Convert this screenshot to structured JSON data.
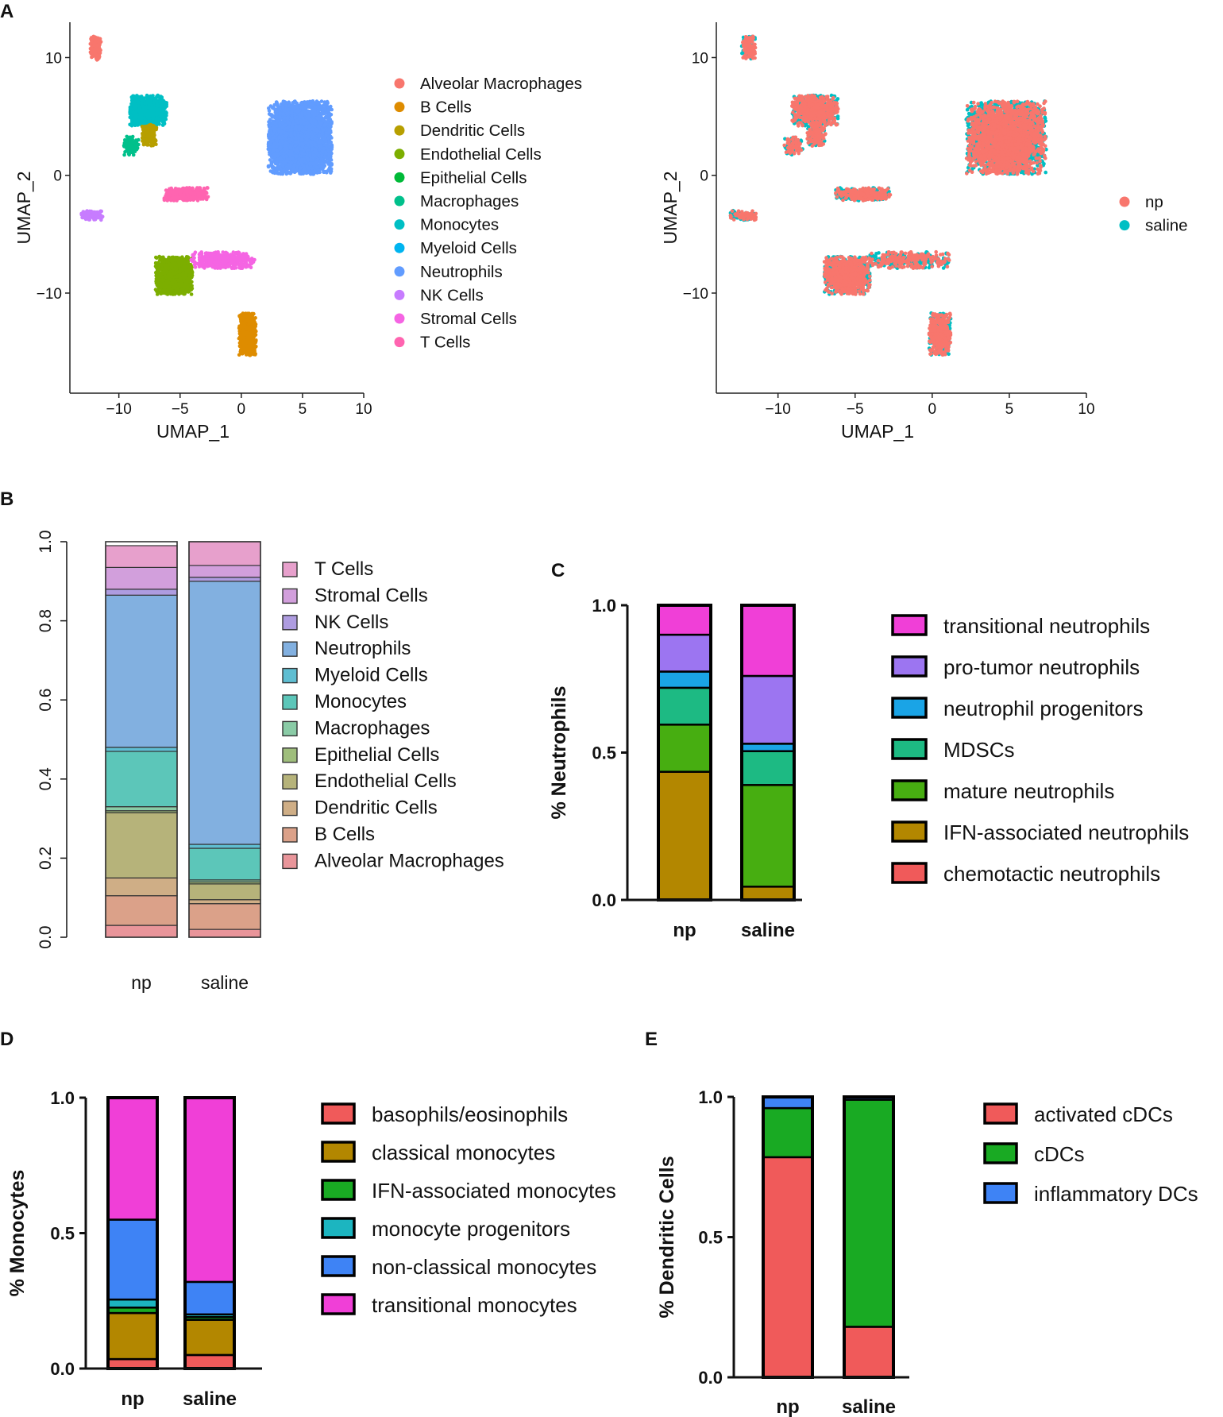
{
  "panel_labels": [
    "A",
    "B",
    "C",
    "D",
    "E"
  ],
  "chart_data": [
    {
      "id": "umap_celltype",
      "type": "scatter",
      "xlabel": "UMAP_1",
      "ylabel": "UMAP_2",
      "xlim": [
        -14,
        10
      ],
      "ylim": [
        -18.5,
        13
      ],
      "xticks": [
        -10,
        -5,
        0,
        5,
        10
      ],
      "yticks": [
        10,
        0,
        -10
      ],
      "legend": [
        {
          "name": "Alveolar Macrophages",
          "color": "#F8766D"
        },
        {
          "name": "B Cells",
          "color": "#DE8C00"
        },
        {
          "name": "Dendritic Cells",
          "color": "#B79F00"
        },
        {
          "name": "Endothelial Cells",
          "color": "#7CAE00"
        },
        {
          "name": "Epithelial Cells",
          "color": "#00BA38"
        },
        {
          "name": "Macrophages",
          "color": "#00C08B"
        },
        {
          "name": "Monocytes",
          "color": "#00BFC4"
        },
        {
          "name": "Myeloid Cells",
          "color": "#00B4F0"
        },
        {
          "name": "Neutrophils",
          "color": "#619CFF"
        },
        {
          "name": "NK Cells",
          "color": "#C77CFF"
        },
        {
          "name": "Stromal Cells",
          "color": "#F564E3"
        },
        {
          "name": "T Cells",
          "color": "#FF64B0"
        }
      ],
      "clusters": [
        {
          "label": "Alveolar Macrophages",
          "center": [
            -11.9,
            10.8
          ],
          "spread": [
            0.45,
            1.0
          ],
          "n": 160
        },
        {
          "label": "Monocytes",
          "center": [
            -7.6,
            5.5
          ],
          "spread": [
            1.5,
            1.3
          ],
          "n": 900
        },
        {
          "label": "Dendritic Cells",
          "center": [
            -7.5,
            3.4
          ],
          "spread": [
            0.6,
            0.9
          ],
          "n": 200
        },
        {
          "label": "Macrophages",
          "center": [
            -9.0,
            2.5
          ],
          "spread": [
            0.6,
            0.8
          ],
          "n": 120
        },
        {
          "label": "Neutrophils",
          "center": [
            4.8,
            3.2
          ],
          "spread": [
            2.6,
            3.1
          ],
          "n": 3500
        },
        {
          "label": "T Cells",
          "center": [
            -4.5,
            -1.6
          ],
          "spread": [
            1.8,
            0.55
          ],
          "n": 420
        },
        {
          "label": "NK Cells",
          "center": [
            -12.2,
            -3.4
          ],
          "spread": [
            0.9,
            0.4
          ],
          "n": 120
        },
        {
          "label": "Endothelial Cells",
          "center": [
            -5.5,
            -8.5
          ],
          "spread": [
            1.5,
            1.6
          ],
          "n": 1300
        },
        {
          "label": "Stromal Cells",
          "center": [
            -1.5,
            -7.2
          ],
          "spread": [
            2.6,
            0.7
          ],
          "n": 420
        },
        {
          "label": "B Cells",
          "center": [
            0.5,
            -13.5
          ],
          "spread": [
            0.7,
            1.8
          ],
          "n": 650
        }
      ]
    },
    {
      "id": "umap_condition",
      "type": "scatter",
      "xlabel": "UMAP_1",
      "ylabel": "UMAP_2",
      "xlim": [
        -14,
        10
      ],
      "ylim": [
        -18.5,
        13
      ],
      "xticks": [
        -10,
        -5,
        0,
        5,
        10
      ],
      "yticks": [
        10,
        0,
        -10
      ],
      "legend": [
        {
          "name": "np",
          "color": "#F8766D"
        },
        {
          "name": "saline",
          "color": "#00BFC4"
        }
      ]
    },
    {
      "id": "panel_b",
      "type": "bar",
      "stacked": true,
      "categories": [
        "np",
        "saline"
      ],
      "yticks": [
        "0.0",
        "0.2",
        "0.4",
        "0.6",
        "0.8",
        "1.0"
      ],
      "ylim": [
        0,
        1
      ],
      "legend_order": [
        "T Cells",
        "Stromal Cells",
        "NK Cells",
        "Neutrophils",
        "Myeloid Cells",
        "Monocytes",
        "Macrophages",
        "Epithelial Cells",
        "Endothelial Cells",
        "Dendritic Cells",
        "B Cells",
        "Alveolar Macrophages"
      ],
      "series": [
        {
          "name": "Alveolar Macrophages",
          "color": "#E9959A",
          "values": [
            0.03,
            0.02
          ]
        },
        {
          "name": "B Cells",
          "color": "#DBA189",
          "values": [
            0.075,
            0.065
          ]
        },
        {
          "name": "Dendritic Cells",
          "color": "#CFAE86",
          "values": [
            0.045,
            0.01
          ]
        },
        {
          "name": "Endothelial Cells",
          "color": "#B6B37A",
          "values": [
            0.165,
            0.04
          ]
        },
        {
          "name": "Epithelial Cells",
          "color": "#9FBE7C",
          "values": [
            0.005,
            0.005
          ]
        },
        {
          "name": "Macrophages",
          "color": "#8ACBA6",
          "values": [
            0.01,
            0.005
          ]
        },
        {
          "name": "Monocytes",
          "color": "#5CC6B9",
          "values": [
            0.14,
            0.08
          ]
        },
        {
          "name": "Myeloid Cells",
          "color": "#5FBED2",
          "values": [
            0.01,
            0.01
          ]
        },
        {
          "name": "Neutrophils",
          "color": "#82B0E0",
          "values": [
            0.385,
            0.665
          ]
        },
        {
          "name": "NK Cells",
          "color": "#AE9CE0",
          "values": [
            0.015,
            0.01
          ]
        },
        {
          "name": "Stromal Cells",
          "color": "#D29FDC",
          "values": [
            0.055,
            0.03
          ]
        },
        {
          "name": "T Cells",
          "color": "#E7A0CC",
          "values": [
            0.055,
            0.06
          ]
        }
      ]
    },
    {
      "id": "panel_c",
      "type": "bar",
      "stacked": true,
      "ylabel": "% Neutrophils",
      "categories": [
        "np",
        "saline"
      ],
      "yticks": [
        "0.0",
        "0.5",
        "1.0"
      ],
      "ylim": [
        0,
        1
      ],
      "legend_order": [
        "transitional neutrophils",
        "pro-tumor neutrophils",
        "neutrophil progenitors",
        "MDSCs",
        "mature neutrophils",
        "IFN-associated neutrophils",
        "chemotactic neutrophils"
      ],
      "series": [
        {
          "name": "chemotactic neutrophils",
          "color": "#F05A5A",
          "values": [
            0.0,
            0.0
          ]
        },
        {
          "name": "IFN-associated neutrophils",
          "color": "#B38700",
          "values": [
            0.435,
            0.045
          ]
        },
        {
          "name": "mature neutrophils",
          "color": "#47AE11",
          "values": [
            0.16,
            0.345
          ]
        },
        {
          "name": "MDSCs",
          "color": "#1DBA83",
          "values": [
            0.125,
            0.115
          ]
        },
        {
          "name": "neutrophil progenitors",
          "color": "#1AA4E6",
          "values": [
            0.055,
            0.025
          ]
        },
        {
          "name": "pro-tumor neutrophils",
          "color": "#9C75F1",
          "values": [
            0.125,
            0.23
          ]
        },
        {
          "name": "transitional neutrophils",
          "color": "#F03FD7",
          "values": [
            0.1,
            0.24
          ]
        }
      ]
    },
    {
      "id": "panel_d",
      "type": "bar",
      "stacked": true,
      "ylabel": "% Monocytes",
      "categories": [
        "np",
        "saline"
      ],
      "yticks": [
        "0.0",
        "0.5",
        "1.0"
      ],
      "ylim": [
        0,
        1
      ],
      "legend_order": [
        "basophils/eosinophils",
        "classical monocytes",
        "IFN-associated monocytes",
        "monocyte progenitors",
        "non-classical monocytes",
        "transitional monocytes"
      ],
      "series": [
        {
          "name": "basophils/eosinophils",
          "color": "#F05A5A",
          "values": [
            0.035,
            0.05
          ]
        },
        {
          "name": "classical monocytes",
          "color": "#B38700",
          "values": [
            0.17,
            0.13
          ]
        },
        {
          "name": "IFN-associated monocytes",
          "color": "#19AA23",
          "values": [
            0.02,
            0.01
          ]
        },
        {
          "name": "monocyte progenitors",
          "color": "#1CB5C0",
          "values": [
            0.03,
            0.01
          ]
        },
        {
          "name": "non-classical monocytes",
          "color": "#3E83F5",
          "values": [
            0.295,
            0.12
          ]
        },
        {
          "name": "transitional monocytes",
          "color": "#F03FD7",
          "values": [
            0.45,
            0.68
          ]
        }
      ]
    },
    {
      "id": "panel_e",
      "type": "bar",
      "stacked": true,
      "ylabel": "% Dendritic Cells",
      "categories": [
        "np",
        "saline"
      ],
      "yticks": [
        "0.0",
        "0.5",
        "1.0"
      ],
      "ylim": [
        0,
        1
      ],
      "legend_order": [
        "activated cDCs",
        "cDCs",
        "inflammatory DCs"
      ],
      "series": [
        {
          "name": "activated cDCs",
          "color": "#F05A5A",
          "values": [
            0.785,
            0.18
          ]
        },
        {
          "name": "cDCs",
          "color": "#19AA23",
          "values": [
            0.175,
            0.81
          ]
        },
        {
          "name": "inflammatory DCs",
          "color": "#3E83F5",
          "values": [
            0.04,
            0.01
          ]
        }
      ]
    }
  ]
}
